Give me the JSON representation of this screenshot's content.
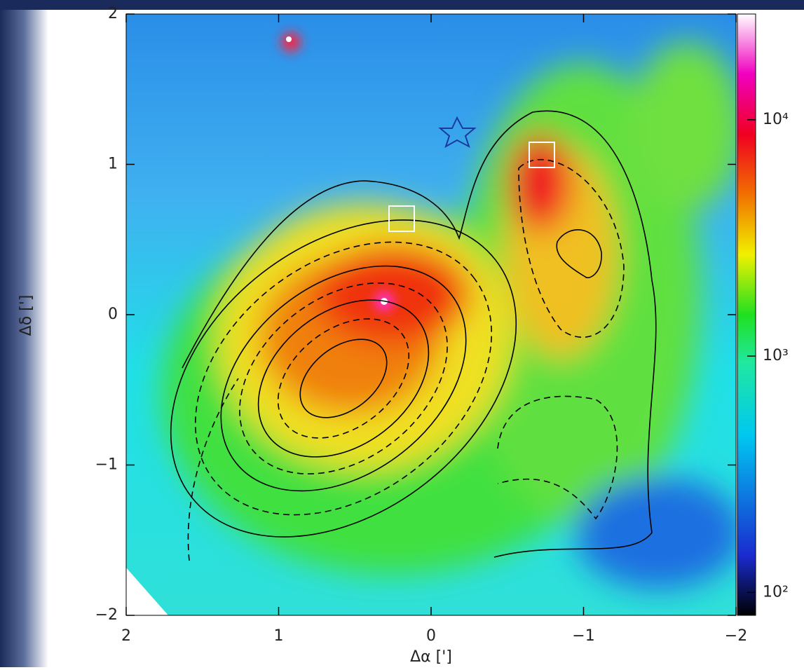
{
  "chart_data": {
    "type": "image",
    "x_label": "Δα [']",
    "y_label": "Δδ [']",
    "xlim": [
      2,
      -2
    ],
    "xticks": [
      2,
      1,
      0,
      {
        "value": -1,
        "label": "−1"
      },
      {
        "value": -2,
        "label": "−2"
      }
    ],
    "ylim": [
      -2,
      2
    ],
    "yticks": [
      {
        "value": -2,
        "label": "−2"
      },
      {
        "value": -1,
        "label": "−1"
      },
      0,
      1,
      2
    ],
    "colorbar": {
      "log_scale": true,
      "lim": [
        80,
        28000
      ],
      "ticks": [
        {
          "value": 100,
          "label": "10²"
        },
        {
          "value": 1000,
          "label": "10³"
        },
        {
          "value": 10000,
          "label": "10⁴"
        }
      ]
    }
  }
}
